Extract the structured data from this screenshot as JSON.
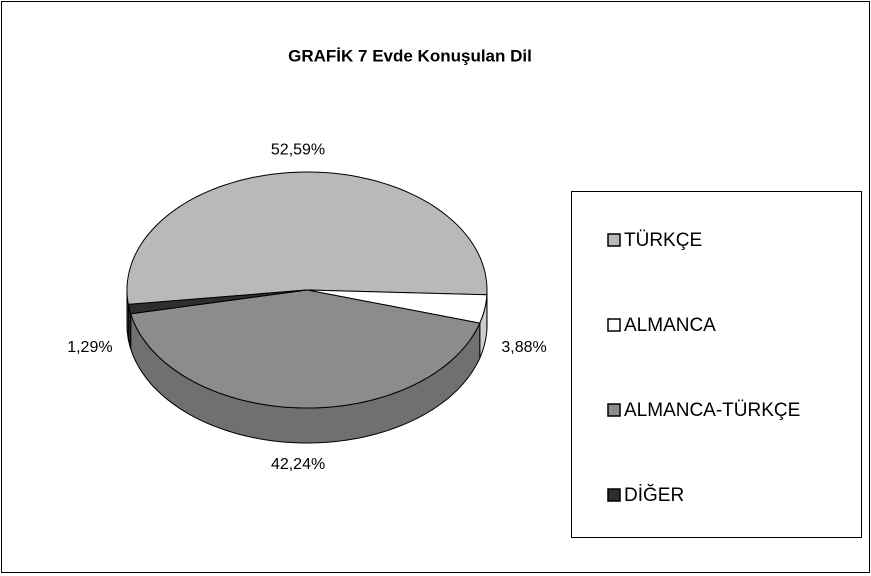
{
  "chart_data": {
    "type": "pie",
    "title": "GRAFİK 7 Evde Konuşulan Dil",
    "categories": [
      "TÜRKÇE",
      "ALMANCA",
      "ALMANCA-TÜRKÇE",
      "DİĞER"
    ],
    "values": [
      52.59,
      3.88,
      42.24,
      1.29
    ],
    "value_labels": [
      "52,59%",
      "3,88%",
      "42,24%",
      "1,29%"
    ],
    "colors": [
      "#b9b9b9",
      "#ffffff",
      "#8c8c8c",
      "#2e2e2e"
    ],
    "legend": "right"
  }
}
